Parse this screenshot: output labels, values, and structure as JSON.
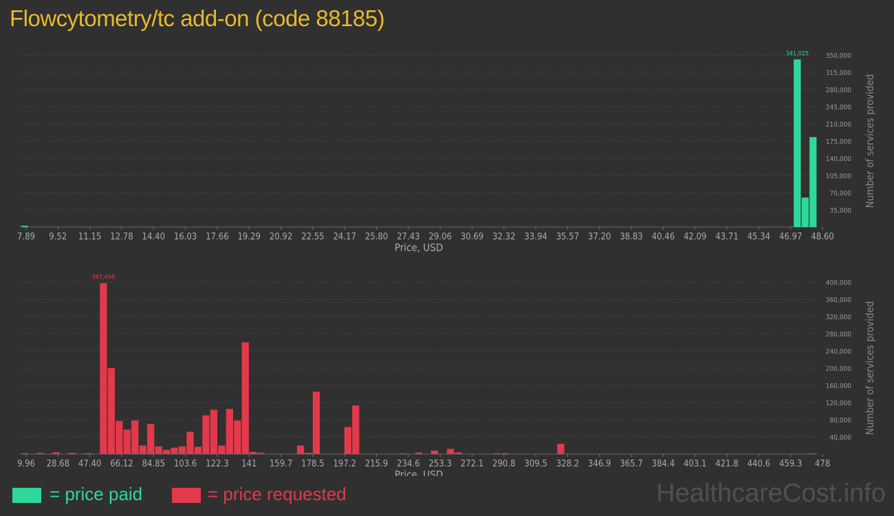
{
  "title": "Flowcytometry/tc add-on (code 88185)",
  "colors": {
    "paid": "#2fd899",
    "requested": "#e23a4b",
    "title": "#e8b92e",
    "background": "#303030"
  },
  "legend": {
    "paid_label": "= price paid",
    "requested_label": "= price requested"
  },
  "watermark": "HealthcareCost.info",
  "chart_data": [
    {
      "type": "bar",
      "name": "price paid",
      "xlabel": "Price, USD",
      "ylabel": "Number of services provided",
      "ylim": [
        0,
        350000
      ],
      "x_tick_labels": [
        "7.89",
        "9.52",
        "11.15",
        "12.78",
        "14.40",
        "16.03",
        "17.66",
        "19.29",
        "20.92",
        "22.55",
        "24.17",
        "25.80",
        "27.43",
        "29.06",
        "30.69",
        "32.32",
        "33.94",
        "35.57",
        "37.20",
        "38.83",
        "40.46",
        "42.09",
        "43.71",
        "45.34",
        "46.97",
        "48.60"
      ],
      "y_tick_labels": [
        "35,000",
        "70,000",
        "105,000",
        "140,000",
        "175,000",
        "210,000",
        "245,000",
        "280,000",
        "315,000",
        "350,000"
      ],
      "y_ticks": [
        35000,
        70000,
        105000,
        140000,
        175000,
        210000,
        245000,
        280000,
        315000,
        350000
      ],
      "max_label": "341,025",
      "max_index": 98,
      "values": [
        2500,
        0,
        0,
        0,
        0,
        0,
        0,
        0,
        0,
        0,
        0,
        0,
        0,
        0,
        0,
        0,
        0,
        0,
        0,
        0,
        0,
        0,
        0,
        0,
        0,
        0,
        0,
        0,
        0,
        0,
        0,
        0,
        0,
        0,
        0,
        0,
        0,
        0,
        0,
        0,
        0,
        0,
        0,
        0,
        0,
        0,
        0,
        0,
        0,
        0,
        0,
        0,
        0,
        0,
        0,
        0,
        0,
        0,
        0,
        0,
        0,
        0,
        0,
        0,
        0,
        0,
        0,
        0,
        0,
        0,
        0,
        0,
        0,
        0,
        0,
        0,
        0,
        0,
        0,
        0,
        0,
        0,
        0,
        0,
        0,
        0,
        0,
        0,
        0,
        0,
        0,
        0,
        0,
        0,
        0,
        0,
        0,
        0,
        341025,
        60000,
        183000
      ]
    },
    {
      "type": "bar",
      "name": "price requested",
      "xlabel": "Price, USD",
      "ylabel": "Number of services provided",
      "ylim": [
        0,
        400000
      ],
      "x_tick_labels": [
        "9.96",
        "28.68",
        "47.40",
        "66.12",
        "84.85",
        "103.6",
        "122.3",
        "141",
        "159.7",
        "178.5",
        "197.2",
        "215.9",
        "234.6",
        "253.3",
        "272.1",
        "290.8",
        "309.5",
        "328.2",
        "346.9",
        "365.7",
        "384.4",
        "403.1",
        "421.8",
        "440.6",
        "459.3",
        "478"
      ],
      "y_tick_labels": [
        "40,000",
        "80,000",
        "120,000",
        "160,000",
        "200,000",
        "240,000",
        "280,000",
        "320,000",
        "360,000",
        "400,000"
      ],
      "y_ticks": [
        40000,
        80000,
        120000,
        160000,
        200000,
        240000,
        280000,
        320000,
        360000,
        400000
      ],
      "max_label": "397,496",
      "max_index": 10,
      "values": []
    }
  ]
}
